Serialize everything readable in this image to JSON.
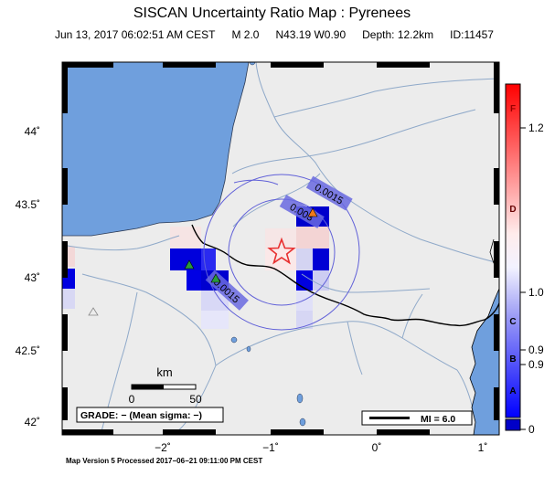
{
  "header": {
    "title": "SISCAN Uncertainty Ratio Map : Pyrenees",
    "datetime": "Jun 13, 2017 06:02:51 AM CEST",
    "magnitude": "M 2.0",
    "location": "N43.19 W0.90",
    "depth": "Depth: 12.2km",
    "event_id": "ID:11457"
  },
  "axes": {
    "lat_ticks": [
      "44˚",
      "43.5˚",
      "43˚",
      "42.5˚",
      "42˚"
    ],
    "lon_ticks": [
      "−2˚",
      "−1˚",
      "0˚",
      "1˚"
    ]
  },
  "contours": {
    "inner_label": "0.003",
    "outer_label": "0.0015",
    "lower_label": "0.0015"
  },
  "scale_bar": {
    "unit": "km",
    "start": "0",
    "end": "50"
  },
  "grade_box": "GRADE: − (Mean sigma: −)",
  "mi_box": "MI = 6.0",
  "colorbar": {
    "letters": [
      "F",
      "D",
      "C",
      "B",
      "A"
    ],
    "values": [
      "1.2",
      "1.0",
      "0.9",
      "0.9",
      "0"
    ],
    "colors": {
      "high": "#ff0000",
      "mid": "#ffffff",
      "low": "#0000ff",
      "bottom": "#0000c8"
    }
  },
  "colors": {
    "land": "#ececec",
    "sea": "#6f9fdd",
    "river": "#8fa9c9",
    "border": "#000000",
    "epicenter": "#e83030",
    "station_orange": "#f07a1a",
    "station_green": "#2a9a3a"
  },
  "footer": "Map Version 5 Processed 2017−06−21 09:11:00 PM CEST"
}
